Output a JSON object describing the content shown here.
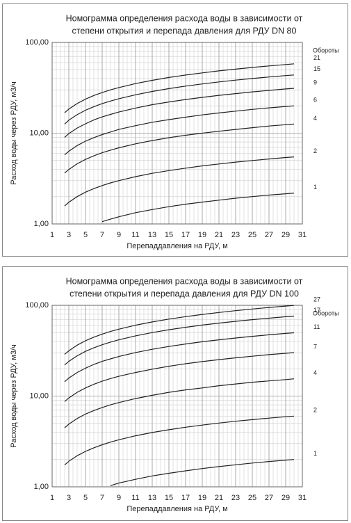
{
  "chart_data": [
    {
      "type": "line",
      "title_lines": [
        "Номограмма  определения расхода воды в зависимости от",
        "степени открытия и перепада давления для РДУ DN 80"
      ],
      "x_label": "Перепаддавления на РДУ, м",
      "y_label": "Расход воды через РДУ, м3/ч",
      "legend_title": "Обороты",
      "log_y": true,
      "grid": true,
      "color": "#222222",
      "xlim": [
        1,
        31
      ],
      "xticks": [
        1,
        3,
        5,
        7,
        9,
        11,
        13,
        15,
        17,
        19,
        21,
        23,
        25,
        27,
        29,
        31
      ],
      "ylim": [
        1,
        100
      ],
      "yticks": [
        {
          "value": 1,
          "label": "1,00"
        },
        {
          "value": 10,
          "label": "10,00"
        },
        {
          "value": 100,
          "label": "100,00"
        }
      ],
      "x": [
        2.5,
        3,
        4,
        5,
        6,
        7,
        8,
        9,
        11,
        13,
        15,
        17,
        19,
        21,
        23,
        25,
        27,
        29,
        30
      ],
      "series": [
        {
          "name": "21",
          "values": [
            16.8,
            18.4,
            21.2,
            23.7,
            26.0,
            28.0,
            30.0,
            31.8,
            35.2,
            38.2,
            41.1,
            43.7,
            46.2,
            48.6,
            50.8,
            53.0,
            55.1,
            57.1,
            58.1
          ]
        },
        {
          "name": "15",
          "values": [
            12.6,
            13.9,
            16.0,
            17.9,
            19.6,
            21.2,
            22.6,
            24.0,
            26.5,
            28.8,
            31.0,
            33.0,
            34.9,
            36.7,
            38.4,
            40.0,
            41.6,
            43.1,
            43.8
          ]
        },
        {
          "name": "9",
          "values": [
            9.0,
            9.9,
            11.4,
            12.7,
            14.0,
            15.1,
            16.1,
            17.1,
            18.9,
            20.6,
            22.1,
            23.5,
            24.8,
            26.1,
            27.3,
            28.5,
            29.6,
            30.7,
            31.2
          ]
        },
        {
          "name": "6",
          "values": [
            5.77,
            6.32,
            7.3,
            8.16,
            8.94,
            9.66,
            10.3,
            11.0,
            12.1,
            13.2,
            14.1,
            15.0,
            15.9,
            16.7,
            17.5,
            18.3,
            19.0,
            19.7,
            20.0
          ]
        },
        {
          "name": "4",
          "values": [
            3.64,
            3.98,
            4.6,
            5.14,
            5.63,
            6.09,
            6.5,
            6.9,
            7.63,
            8.29,
            8.91,
            9.48,
            10.0,
            10.5,
            11.0,
            11.5,
            12.0,
            12.4,
            12.6
          ]
        },
        {
          "name": "2",
          "values": [
            1.58,
            1.73,
            2.0,
            2.24,
            2.45,
            2.65,
            2.83,
            3.0,
            3.32,
            3.61,
            3.87,
            4.12,
            4.36,
            4.58,
            4.8,
            5.0,
            5.2,
            5.39,
            5.48
          ]
        },
        {
          "name": "1",
          "values": [
            null,
            null,
            null,
            null,
            null,
            1.06,
            1.13,
            1.2,
            1.33,
            1.44,
            1.55,
            1.65,
            1.74,
            1.83,
            1.92,
            2.0,
            2.08,
            2.15,
            2.19
          ]
        }
      ]
    },
    {
      "type": "line",
      "title_lines": [
        "Номограмма  определения расхода воды в зависимости от",
        "степени открытия и перепада давления для РДУ DN 100"
      ],
      "x_label": "Перепаддавления на РДУ, м",
      "y_label": "Расход воды через РДУ, м3/ч",
      "legend_title": "Обороты",
      "log_y": true,
      "grid": true,
      "color": "#222222",
      "xlim": [
        1,
        31
      ],
      "xticks": [
        1,
        3,
        5,
        7,
        9,
        11,
        13,
        15,
        17,
        19,
        21,
        23,
        25,
        27,
        29,
        31
      ],
      "ylim": [
        1,
        100
      ],
      "yticks": [
        {
          "value": 1,
          "label": "1,00"
        },
        {
          "value": 10,
          "label": "10,00"
        },
        {
          "value": 100,
          "label": "100,00"
        }
      ],
      "x": [
        2.5,
        3,
        4,
        5,
        6,
        7,
        8,
        9,
        11,
        13,
        15,
        17,
        19,
        21,
        23,
        25,
        27,
        29,
        30
      ],
      "series": [
        {
          "name": "27",
          "values": [
            28.8,
            31.5,
            36.4,
            40.7,
            44.6,
            48.2,
            51.5,
            54.6,
            60.4,
            65.6,
            70.5,
            75.0,
            79.3,
            83.4,
            87.3,
            91.0,
            94.6,
            98.0,
            99.7
          ]
        },
        {
          "name": "17",
          "values": [
            22.0,
            24.1,
            27.8,
            31.1,
            34.0,
            36.8,
            39.3,
            41.7,
            46.1,
            50.1,
            53.8,
            57.3,
            60.6,
            63.7,
            66.7,
            69.5,
            72.2,
            74.9,
            76.1
          ]
        },
        {
          "name": "11",
          "values": [
            14.4,
            15.8,
            18.2,
            20.3,
            22.3,
            24.1,
            25.7,
            27.3,
            30.2,
            32.8,
            35.2,
            37.5,
            39.7,
            41.7,
            43.6,
            45.5,
            47.3,
            49.0,
            49.8
          ]
        },
        {
          "name": "7",
          "values": [
            8.7,
            9.53,
            11.0,
            12.3,
            13.5,
            14.6,
            15.6,
            16.5,
            18.2,
            19.8,
            21.3,
            22.7,
            24.0,
            25.2,
            26.4,
            27.5,
            28.6,
            29.6,
            30.1
          ]
        },
        {
          "name": "4",
          "values": [
            4.47,
            4.9,
            5.66,
            6.33,
            6.93,
            7.49,
            8.0,
            8.49,
            9.39,
            10.2,
            11.0,
            11.7,
            12.3,
            13.0,
            13.6,
            14.2,
            14.7,
            15.2,
            15.5
          ]
        },
        {
          "name": "2",
          "values": [
            1.74,
            1.91,
            2.2,
            2.46,
            2.69,
            2.91,
            3.11,
            3.3,
            3.65,
            3.97,
            4.26,
            4.54,
            4.79,
            5.04,
            5.28,
            5.5,
            5.72,
            5.92,
            6.02
          ]
        },
        {
          "name": "1",
          "values": [
            null,
            null,
            null,
            null,
            null,
            null,
            1.03,
            1.1,
            1.21,
            1.32,
            1.41,
            1.5,
            1.59,
            1.67,
            1.75,
            1.83,
            1.9,
            1.97,
            2.0
          ]
        }
      ]
    }
  ]
}
